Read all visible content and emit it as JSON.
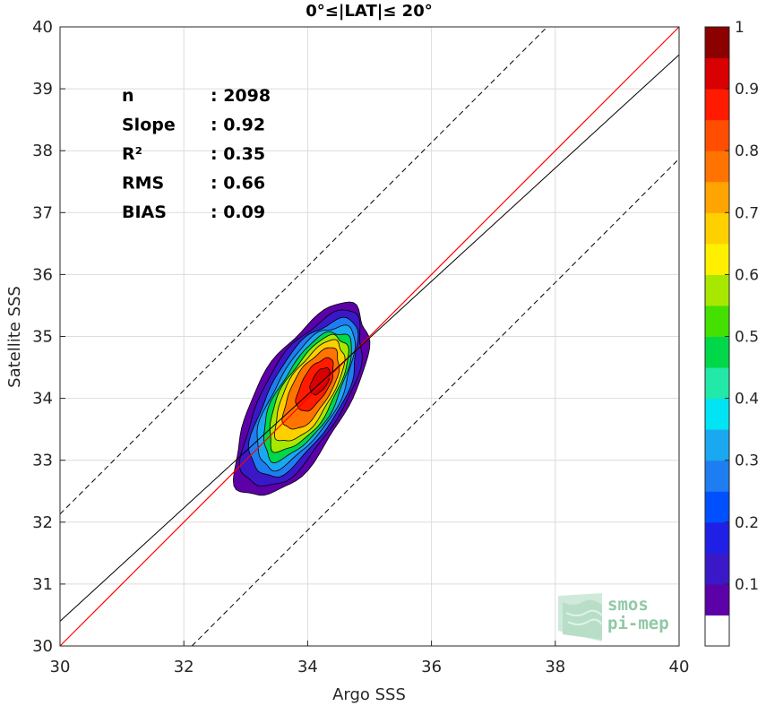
{
  "chart_data": {
    "type": "contour",
    "title": "0°≤|LAT|≤ 20°",
    "xlabel": "Argo SSS",
    "ylabel": "Satellite SSS",
    "xlim": [
      30,
      40
    ],
    "ylim": [
      30,
      40
    ],
    "xticks": [
      "30",
      "32",
      "34",
      "36",
      "38",
      "40"
    ],
    "yticks": [
      "30",
      "31",
      "32",
      "33",
      "34",
      "35",
      "36",
      "37",
      "38",
      "39",
      "40"
    ],
    "grid": true,
    "stats": [
      {
        "label": "n",
        "value": ": 2098"
      },
      {
        "label": "Slope",
        "value": ": 0.92"
      },
      {
        "label": "R²",
        "value": ": 0.35"
      },
      {
        "label": "RMS",
        "value": ": 0.66"
      },
      {
        "label": "BIAS",
        "value": ": 0.09"
      }
    ],
    "lines": {
      "one_to_one": {
        "color": "#ff0000"
      },
      "regression": {
        "color": "#000000",
        "points": [
          [
            30,
            30.4
          ],
          [
            40,
            39.55
          ]
        ]
      },
      "upper_bound": {
        "dash": true,
        "points": [
          [
            30,
            32.13
          ],
          [
            40,
            42.13
          ]
        ]
      },
      "lower_bound": {
        "dash": true,
        "points": [
          [
            30,
            27.87
          ],
          [
            40,
            37.87
          ]
        ]
      }
    },
    "density": {
      "center": [
        34.2,
        34.28
      ],
      "axis_angle_deg": 60,
      "levels": [
        {
          "level": 0.05,
          "semi_major": 1.75,
          "semi_minor": 0.72,
          "shift": [
            -0.3,
            -0.32
          ]
        },
        {
          "level": 0.15,
          "semi_major": 1.6,
          "semi_minor": 0.64,
          "shift": [
            -0.28,
            -0.3
          ]
        },
        {
          "level": 0.25,
          "semi_major": 1.43,
          "semi_minor": 0.57,
          "shift": [
            -0.25,
            -0.27
          ]
        },
        {
          "level": 0.35,
          "semi_major": 1.3,
          "semi_minor": 0.51,
          "shift": [
            -0.23,
            -0.25
          ]
        },
        {
          "level": 0.45,
          "semi_major": 1.17,
          "semi_minor": 0.46,
          "shift": [
            -0.21,
            -0.23
          ]
        },
        {
          "level": 0.55,
          "semi_major": 1.05,
          "semi_minor": 0.41,
          "shift": [
            -0.19,
            -0.2
          ]
        },
        {
          "level": 0.65,
          "semi_major": 0.92,
          "semi_minor": 0.36,
          "shift": [
            -0.17,
            -0.17
          ]
        },
        {
          "level": 0.75,
          "semi_major": 0.74,
          "semi_minor": 0.3,
          "shift": [
            -0.14,
            -0.13
          ]
        },
        {
          "level": 0.85,
          "semi_major": 0.48,
          "semi_minor": 0.21,
          "shift": [
            -0.08,
            -0.06
          ]
        },
        {
          "level": 0.95,
          "semi_major": 0.24,
          "semi_minor": 0.12,
          "shift": [
            0.0,
            0.0
          ]
        }
      ]
    },
    "colorbar": {
      "ticks": [
        "0.1",
        "0.2",
        "0.3",
        "0.4",
        "0.5",
        "0.6",
        "0.7",
        "0.8",
        "0.9",
        "1"
      ],
      "bands": [
        "#ffffff",
        "#5c00a8",
        "#3a18c8",
        "#1f1fe6",
        "#0050ff",
        "#1e7df0",
        "#1aa8f0",
        "#00e4f4",
        "#22e8a8",
        "#00d84a",
        "#44e000",
        "#a8e800",
        "#fff000",
        "#ffd000",
        "#ffa400",
        "#ff7400",
        "#ff4e00",
        "#ff1a00",
        "#d80000",
        "#8c0000"
      ]
    }
  },
  "logo": {
    "line1": "smos",
    "line2": "pi-mep"
  }
}
